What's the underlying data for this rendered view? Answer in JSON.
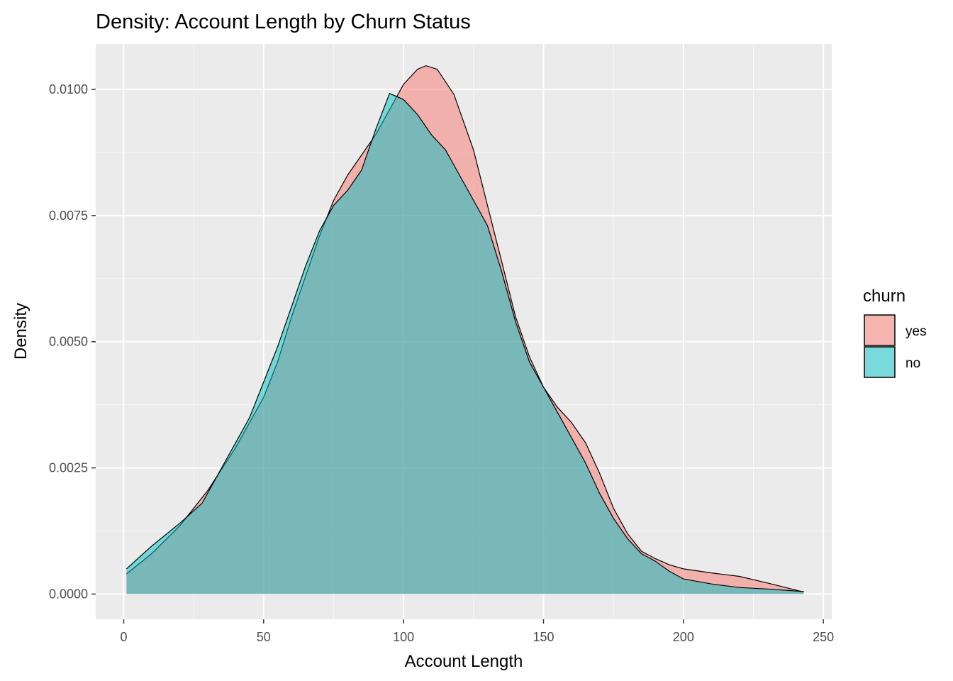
{
  "chart_data": {
    "type": "area",
    "subtype": "density",
    "title": "Density: Account Length by Churn Status",
    "xlabel": "Account Length",
    "ylabel": "Density",
    "xlim": [
      -10,
      253
    ],
    "ylim": [
      -0.0005,
      0.0109
    ],
    "x_ticks": [
      0,
      50,
      100,
      150,
      200,
      250
    ],
    "x_tick_labels": [
      "0",
      "50",
      "100",
      "150",
      "200",
      "250"
    ],
    "y_ticks": [
      0.0,
      0.0025,
      0.005,
      0.0075,
      0.01
    ],
    "y_tick_labels": [
      "0.0000",
      "0.0025",
      "0.0050",
      "0.0075",
      "0.0100"
    ],
    "grid": true,
    "legend": {
      "title": "churn",
      "position": "right",
      "entries": [
        "yes",
        "no"
      ]
    },
    "series": [
      {
        "name": "yes",
        "color": "#F8766D",
        "alpha": 0.5,
        "points": [
          [
            1,
            0.0004
          ],
          [
            10,
            0.0008
          ],
          [
            20,
            0.00135
          ],
          [
            30,
            0.00205
          ],
          [
            40,
            0.0029
          ],
          [
            50,
            0.0039
          ],
          [
            55,
            0.0046
          ],
          [
            60,
            0.0055
          ],
          [
            65,
            0.0063
          ],
          [
            70,
            0.0071
          ],
          [
            75,
            0.0078
          ],
          [
            80,
            0.0083
          ],
          [
            85,
            0.0087
          ],
          [
            90,
            0.0091
          ],
          [
            95,
            0.0096
          ],
          [
            100,
            0.0101
          ],
          [
            105,
            0.0104
          ],
          [
            108,
            0.01047
          ],
          [
            112,
            0.0104
          ],
          [
            118,
            0.0099
          ],
          [
            125,
            0.0088
          ],
          [
            130,
            0.0077
          ],
          [
            135,
            0.0066
          ],
          [
            140,
            0.0055
          ],
          [
            145,
            0.0047
          ],
          [
            150,
            0.0041
          ],
          [
            155,
            0.0037
          ],
          [
            160,
            0.0034
          ],
          [
            165,
            0.003
          ],
          [
            170,
            0.0024
          ],
          [
            175,
            0.0017
          ],
          [
            180,
            0.0012
          ],
          [
            185,
            0.00085
          ],
          [
            190,
            0.0007
          ],
          [
            195,
            0.00058
          ],
          [
            200,
            0.0005
          ],
          [
            210,
            0.00042
          ],
          [
            220,
            0.00035
          ],
          [
            230,
            0.00022
          ],
          [
            243,
            4e-05
          ]
        ]
      },
      {
        "name": "no",
        "color": "#00BFC4",
        "alpha": 0.5,
        "points": [
          [
            1,
            0.0005
          ],
          [
            10,
            0.00095
          ],
          [
            20,
            0.0014
          ],
          [
            28,
            0.0018
          ],
          [
            35,
            0.0025
          ],
          [
            45,
            0.0035
          ],
          [
            50,
            0.0042
          ],
          [
            55,
            0.0049
          ],
          [
            60,
            0.0057
          ],
          [
            65,
            0.0065
          ],
          [
            70,
            0.0072
          ],
          [
            75,
            0.0077
          ],
          [
            80,
            0.008
          ],
          [
            85,
            0.0084
          ],
          [
            90,
            0.0092
          ],
          [
            95,
            0.00992
          ],
          [
            100,
            0.0098
          ],
          [
            105,
            0.0095
          ],
          [
            110,
            0.0091
          ],
          [
            115,
            0.0088
          ],
          [
            120,
            0.0083
          ],
          [
            125,
            0.0078
          ],
          [
            130,
            0.0073
          ],
          [
            135,
            0.0064
          ],
          [
            140,
            0.0054
          ],
          [
            145,
            0.0046
          ],
          [
            150,
            0.0041
          ],
          [
            155,
            0.0036
          ],
          [
            160,
            0.0031
          ],
          [
            165,
            0.0026
          ],
          [
            170,
            0.002
          ],
          [
            175,
            0.0015
          ],
          [
            180,
            0.0011
          ],
          [
            185,
            0.0008
          ],
          [
            190,
            0.00065
          ],
          [
            195,
            0.00045
          ],
          [
            200,
            0.0003
          ],
          [
            210,
            0.0002
          ],
          [
            220,
            0.00013
          ],
          [
            230,
            0.0001
          ],
          [
            243,
            5e-05
          ]
        ]
      }
    ]
  }
}
